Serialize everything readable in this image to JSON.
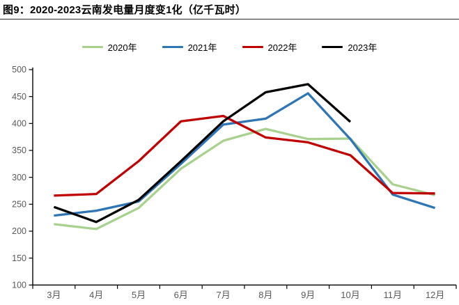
{
  "header": {
    "title": "图9：2020-2023云南发电量月度变1化（亿千瓦时）"
  },
  "chart_data": {
    "type": "line",
    "title": "2020-2023云南发电量月度变化（亿千瓦时）",
    "categories": [
      "3月",
      "4月",
      "5月",
      "6月",
      "7月",
      "8月",
      "9月",
      "10月",
      "11月",
      "12月"
    ],
    "series": [
      {
        "name": "2020年",
        "color": "#A9D18E",
        "values": [
          213,
          204,
          243,
          316,
          368,
          390,
          371,
          372,
          287,
          267
        ]
      },
      {
        "name": "2021年",
        "color": "#2E75B6",
        "values": [
          229,
          238,
          255,
          325,
          398,
          409,
          456,
          371,
          268,
          243
        ]
      },
      {
        "name": "2022年",
        "color": "#C00000",
        "values": [
          266,
          269,
          330,
          404,
          414,
          374,
          365,
          341,
          271,
          270
        ]
      },
      {
        "name": "2023年",
        "color": "#000000",
        "values": [
          245,
          217,
          258,
          330,
          404,
          458,
          473,
          403,
          null,
          null
        ]
      }
    ],
    "xlabel": "",
    "ylabel": "",
    "ylim": [
      100,
      500
    ],
    "ytick_step": 50,
    "grid": false,
    "legend_position": "top",
    "axis_color": "#000000",
    "tick_label_color": "#595959"
  }
}
